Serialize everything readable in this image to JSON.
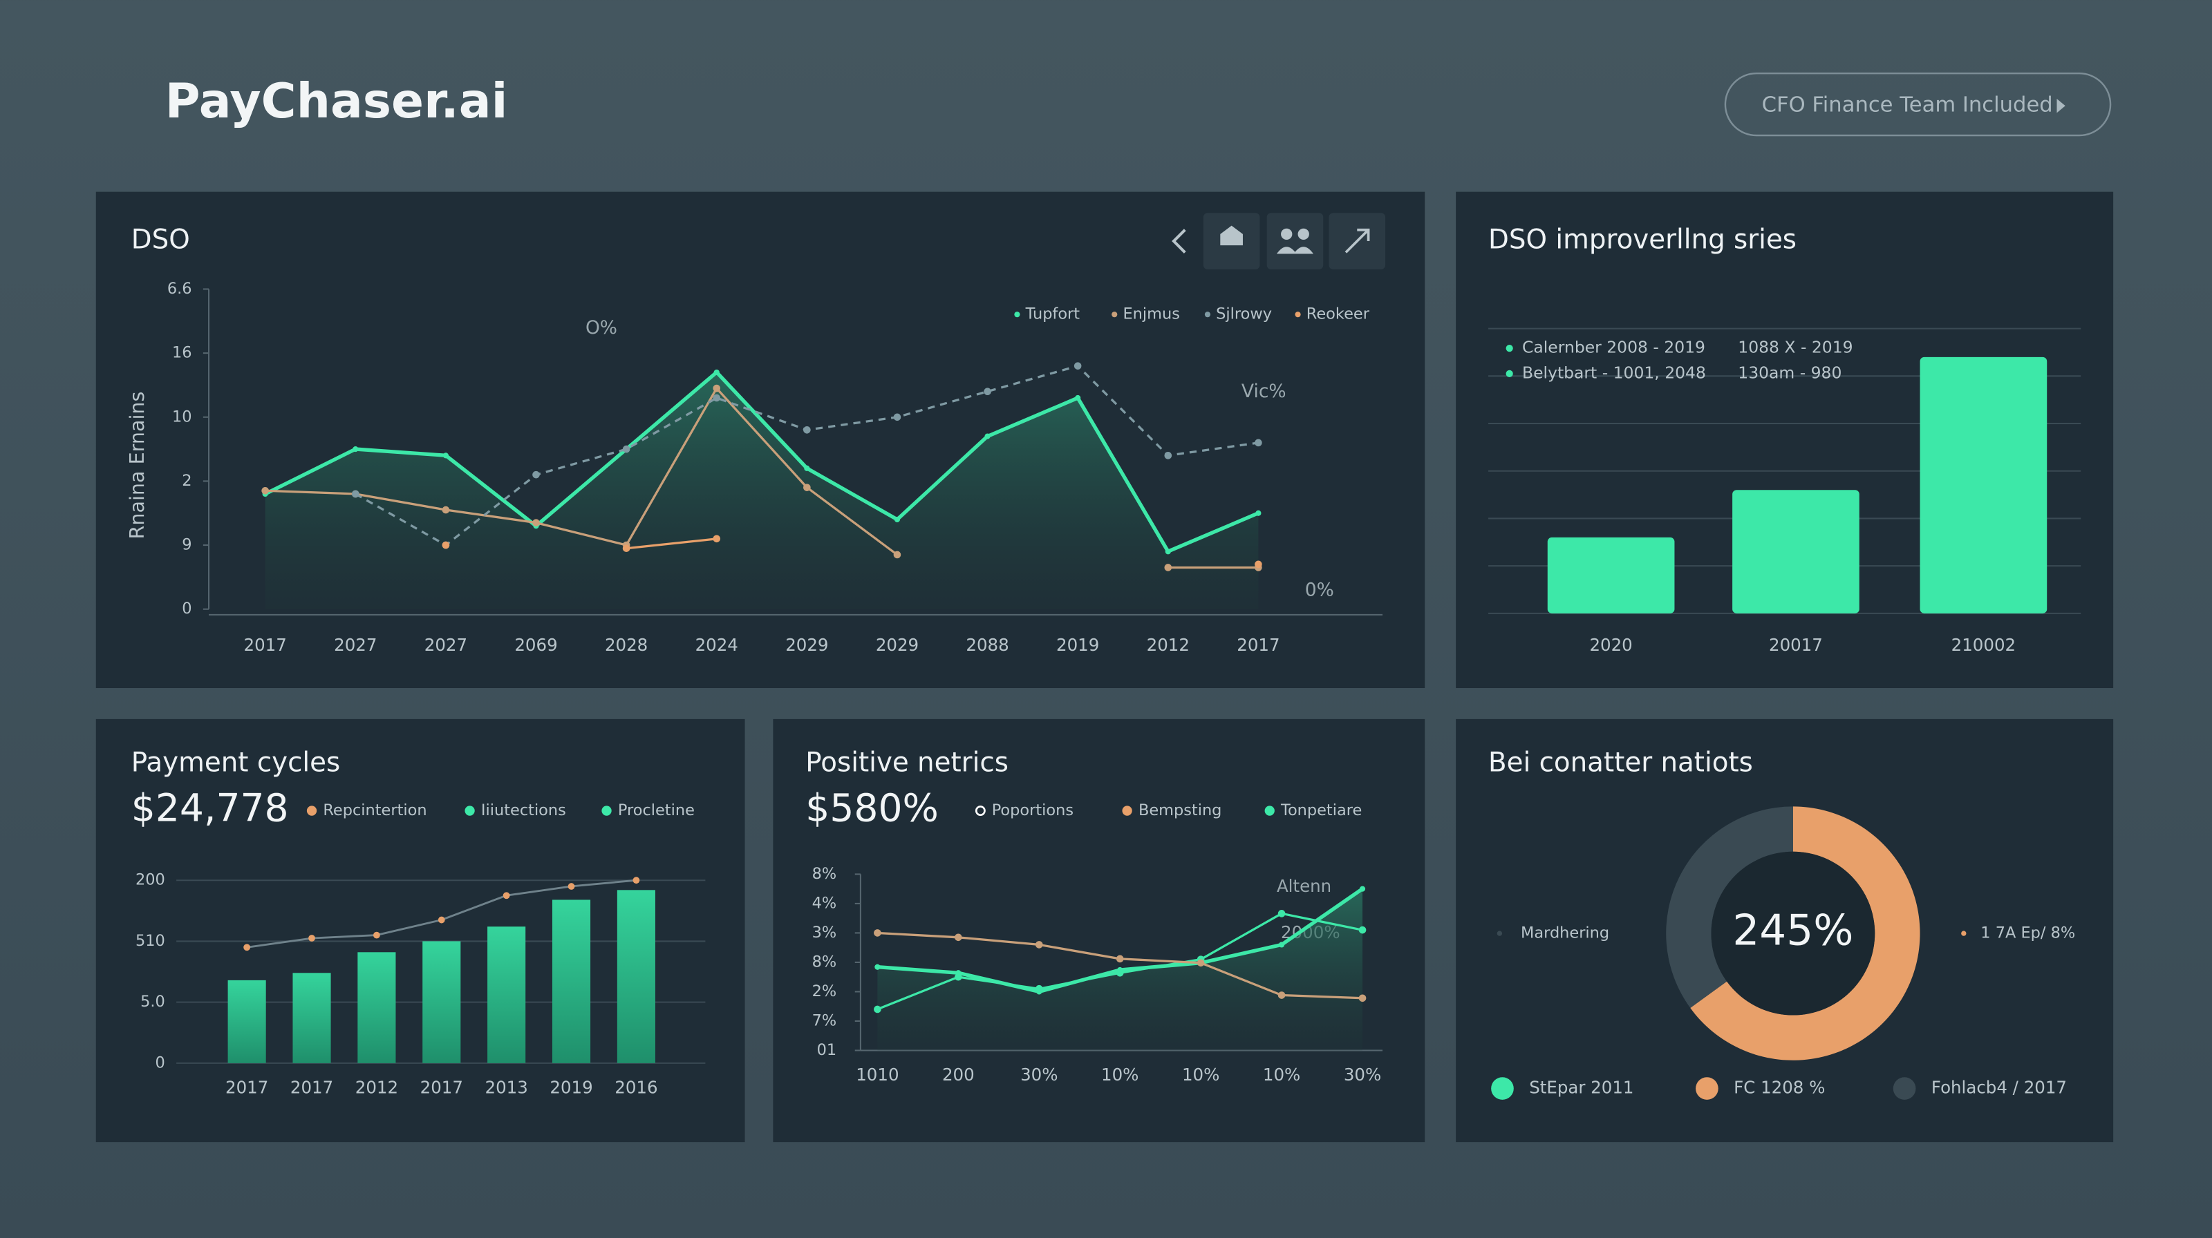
{
  "header": {
    "brand": "PayChaser.ai",
    "button": "CFO Finance Team Included"
  },
  "chart_data": [
    {
      "type": "line",
      "title": "DSO",
      "ylabel": "Rnaina Ernains",
      "legend": "upper right",
      "categories": [
        "2017",
        "2027",
        "2027",
        "2069",
        "2028",
        "2024",
        "2029",
        "2029",
        "2088",
        "2019",
        "2012",
        "2017"
      ],
      "ylim": [
        0,
        5
      ],
      "yticks": [
        0,
        {
          "value": 1,
          "label": "9"
        },
        2,
        {
          "value": 3,
          "label": "10"
        },
        {
          "value": 4,
          "label": "16"
        },
        {
          "value": 5,
          "label": "6.6"
        }
      ],
      "series": [
        {
          "name": "Tupfort",
          "color": "#3de8a8",
          "values": [
            1.8,
            2.5,
            2.4,
            1.3,
            2.5,
            3.7,
            2.2,
            1.4,
            2.7,
            3.3,
            0.9,
            1.5
          ]
        },
        {
          "name": "Enjmus",
          "color": "#c9a07a",
          "values": [
            1.85,
            1.8,
            1.55,
            1.35,
            1.0,
            3.45,
            1.9,
            0.85,
            null,
            null,
            0.65,
            0.65
          ]
        },
        {
          "name": "Sjlrowy",
          "color": "#7f9aa3",
          "values": [
            null,
            1.8,
            1.0,
            2.1,
            2.5,
            3.3,
            2.8,
            3.0,
            3.4,
            3.8,
            2.4,
            2.6
          ]
        },
        {
          "name": "Reokeer",
          "color": "#e8a06a",
          "values": [
            null,
            null,
            1.0,
            null,
            0.95,
            1.1,
            null,
            null,
            null,
            null,
            null,
            0.7
          ]
        }
      ],
      "annotations": [
        "O%",
        "Vic%",
        "0%"
      ]
    },
    {
      "type": "bar",
      "title": "DSO improverllng sries",
      "categories": [
        "2020",
        "20017",
        "210002"
      ],
      "values": [
        1.6,
        2.6,
        5.4
      ],
      "color": "#3de8a8",
      "ylim": [
        0,
        6
      ],
      "yticks": [
        0,
        1,
        2,
        3,
        4,
        5,
        6
      ],
      "grid": true,
      "legend_rows": [
        {
          "label": "Calernber 2008 - 2019",
          "note": "1088 X - 2019"
        },
        {
          "label": "Belytbart - 1001, 2048",
          "note": "130am - 980"
        }
      ]
    },
    {
      "type": "combo",
      "title": "Payment cycles",
      "kpi": "$24,778",
      "legend": [
        {
          "name": "Repcintertion",
          "color": "#e8a06a"
        },
        {
          "name": "Iiiutections",
          "color": "#3de8a8"
        },
        {
          "name": "Procletine",
          "color": "#3de8a8"
        }
      ],
      "categories": [
        "2017",
        "2017",
        "2012",
        "2017",
        "2013",
        "2019",
        "2016"
      ],
      "ylim": [
        0,
        3.1
      ],
      "yticks": [
        0,
        {
          "value": 1,
          "label": "5.0"
        },
        {
          "value": 2,
          "label": "510"
        },
        {
          "value": 3,
          "label": "200"
        }
      ],
      "grid": true,
      "series": [
        {
          "type": "bar",
          "color": "#2fc994",
          "values": [
            1.36,
            1.48,
            1.82,
            2.0,
            2.24,
            2.68,
            2.84
          ]
        },
        {
          "type": "line",
          "color": "#6f828b",
          "marker_color": "#e8a06a",
          "values": [
            1.9,
            2.05,
            2.1,
            2.35,
            2.75,
            2.9,
            3.0
          ]
        }
      ]
    },
    {
      "type": "line",
      "title": "Positive netrics",
      "kpi": "$580%",
      "legend": [
        {
          "name": "Poportions",
          "color": "#ffffff"
        },
        {
          "name": "Bempsting",
          "color": "#e8a06a"
        },
        {
          "name": "Tonpetiare",
          "color": "#3de8a8"
        }
      ],
      "categories": [
        "1010",
        "200",
        "30%",
        "10%",
        "10%",
        "10%",
        "30%"
      ],
      "ylim": [
        0,
        6
      ],
      "yticks": [
        {
          "value": 0,
          "label": "01"
        },
        {
          "value": 1,
          "label": "7%"
        },
        {
          "value": 2,
          "label": "2%"
        },
        {
          "value": 3,
          "label": "8%"
        },
        {
          "value": 4,
          "label": "3%"
        },
        {
          "value": 5,
          "label": "4%"
        },
        {
          "value": 6,
          "label": "8%"
        }
      ],
      "series": [
        {
          "color": "#3de8a8",
          "values": [
            2.84,
            2.64,
            2.0,
            2.74,
            2.98,
            3.6,
            5.5
          ]
        },
        {
          "color": "#3de8a8",
          "values": [
            1.4,
            2.5,
            2.1,
            2.64,
            3.1,
            4.66,
            4.1
          ]
        },
        {
          "color": "#c9a07a",
          "values": [
            4.0,
            3.85,
            3.6,
            3.12,
            2.98,
            1.88,
            1.78
          ]
        }
      ],
      "annotations": [
        "Altenn",
        "2000%"
      ]
    },
    {
      "type": "pie",
      "title": "Bei conatter natiots",
      "center_label": "245%",
      "values": [
        65,
        35
      ],
      "colors": [
        "#e8a06a",
        "#3a4a53"
      ],
      "labels": [
        "1 7A Ep/ 8%",
        "Mardhering"
      ],
      "legend": [
        {
          "name": "StEpar 2011",
          "color": "#3de8a8"
        },
        {
          "name": "FC 1208 %",
          "color": "#e8a06a"
        },
        {
          "name": "Fohlacb4 / 2017",
          "color": "#3a4a53"
        }
      ]
    }
  ]
}
